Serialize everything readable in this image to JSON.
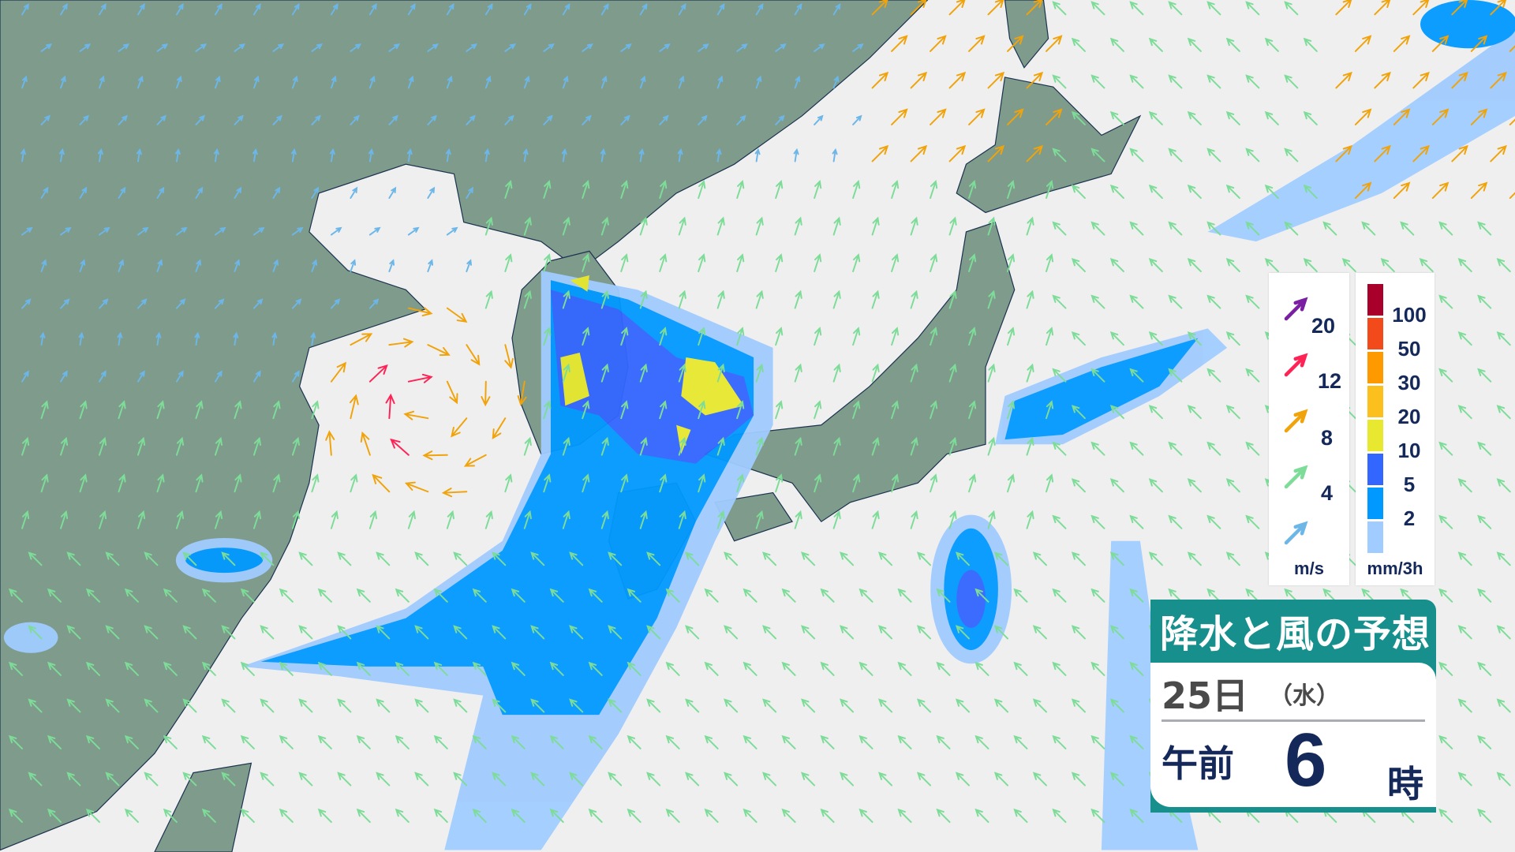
{
  "title": "降水と風の予想",
  "forecast": {
    "day": "25日",
    "weekday": "（水）",
    "ampm": "午前",
    "hour": "6",
    "hour_unit": "時"
  },
  "wind_legend": {
    "unit": "m/s",
    "levels": [
      {
        "label": "20",
        "color": "#7a1fa2"
      },
      {
        "label": "12",
        "color": "#ff2255"
      },
      {
        "label": "8",
        "color": "#f0a30a"
      },
      {
        "label": "4",
        "color": "#7ddc98"
      },
      {
        "label": "",
        "color": "#6cb6e8"
      }
    ]
  },
  "precip_legend": {
    "unit": "mm/3h",
    "levels": [
      {
        "label": "100",
        "color": "#a8002a"
      },
      {
        "label": "50",
        "color": "#f24a1a"
      },
      {
        "label": "30",
        "color": "#ff9900"
      },
      {
        "label": "20",
        "color": "#fbc01e"
      },
      {
        "label": "10",
        "color": "#e8e830"
      },
      {
        "label": "5",
        "color": "#3366ff"
      },
      {
        "label": "2",
        "color": "#0099ff"
      },
      {
        "label": "",
        "color": "#a0ccff"
      }
    ]
  },
  "colors": {
    "sea": "#efefef",
    "land": "#7f9b8b",
    "border": "#1d3550"
  }
}
